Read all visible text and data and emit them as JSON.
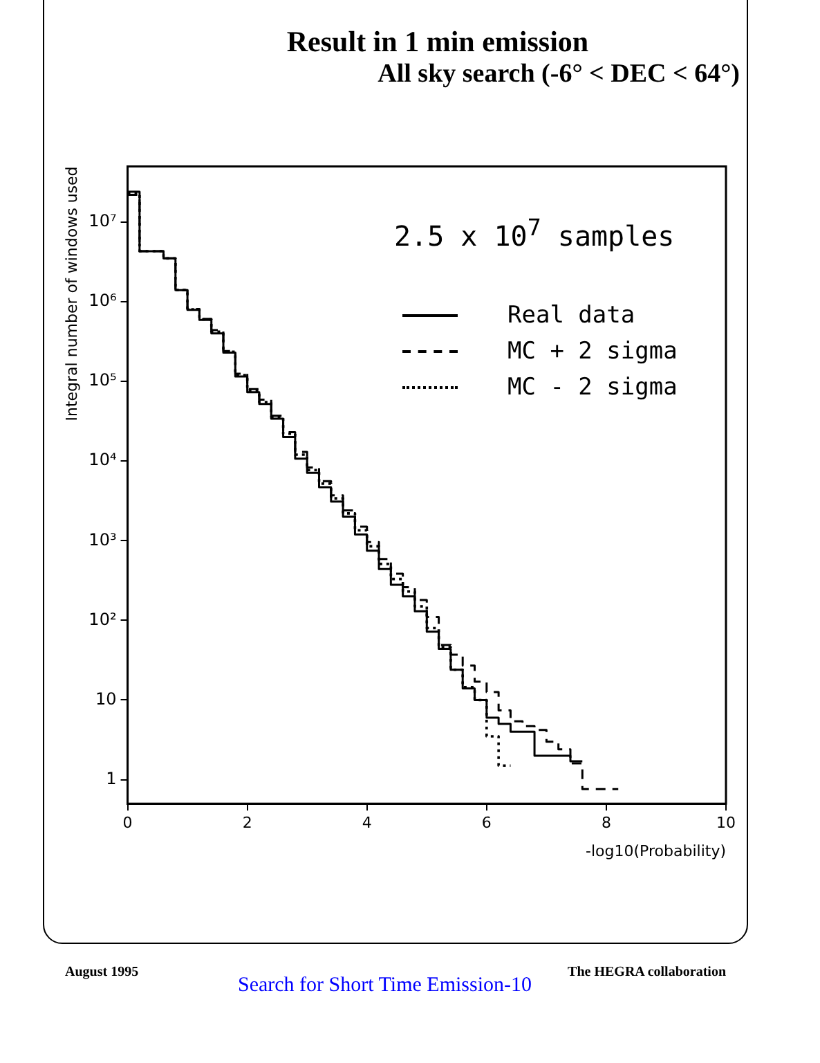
{
  "chart_data": {
    "type": "step",
    "title": "Result in 1 min emission",
    "subtitle": "All sky search (-6° < DEC < 64°)",
    "xlabel": "-log10(Probability)",
    "ylabel": "Integral number of windows used",
    "annotations": [
      "2.5 x 10$^{7}$ samples",
      "August 1995",
      "The HEGRA collaboration",
      "Search for Short Time Emission-10"
    ],
    "series": [
      {
        "name": "Real data",
        "color": "#000000",
        "line_style": "solid",
        "x": [
          0,
          0.2,
          0.4,
          0.6,
          0.8,
          1.0,
          1.2,
          1.4,
          1.6,
          1.8,
          2.0,
          2.2,
          2.4,
          2.6,
          2.8,
          3.0,
          3.2,
          3.4,
          3.6,
          3.8,
          4.0,
          4.2,
          4.4,
          4.6,
          4.8,
          5.0,
          5.2,
          5.4,
          5.6,
          5.8,
          6.0,
          6.2,
          6.4,
          6.6,
          6.8,
          7.0,
          7.2,
          7.4,
          7.6
        ],
        "values": [
          24000000,
          4300000,
          4300000,
          3500000,
          1400000,
          790000,
          590000,
          400000,
          230000,
          115000,
          73000,
          52000,
          34000,
          20000,
          10700,
          7100,
          4700,
          3100,
          2000,
          1200,
          750,
          440,
          280,
          200,
          130,
          72,
          44,
          24,
          14,
          10,
          6,
          5,
          4,
          4,
          2,
          2,
          2,
          1.7,
          1.7
        ]
      },
      {
        "name": "MC + 2 sigma",
        "color": "#000000",
        "line_style": "dashed",
        "x": [
          0,
          0.2,
          0.4,
          0.6,
          0.8,
          1.0,
          1.2,
          1.4,
          1.6,
          1.8,
          2.0,
          2.2,
          2.4,
          2.6,
          2.8,
          3.0,
          3.2,
          3.4,
          3.6,
          3.8,
          4.0,
          4.2,
          4.4,
          4.6,
          4.8,
          5.0,
          5.2,
          5.4,
          5.6,
          5.8,
          6.0,
          6.2,
          6.4,
          6.6,
          6.8,
          7.0,
          7.2,
          7.4,
          7.6,
          7.8,
          8.0,
          8.2
        ],
        "values": [
          22000000,
          4300000,
          4300000,
          3500000,
          1400000,
          810000,
          610000,
          440000,
          240000,
          125000,
          80000,
          59000,
          37000,
          23000,
          13000,
          8300,
          5600,
          3700,
          2400,
          1500,
          960,
          590,
          385,
          260,
          180,
          110,
          49,
          37,
          27,
          17,
          12.6,
          7.4,
          5.4,
          4.7,
          4.2,
          3.0,
          2.4,
          1.6,
          0.76,
          0.76,
          0.76,
          0.76
        ]
      },
      {
        "name": "MC - 2 sigma",
        "color": "#000000",
        "line_style": "dotted",
        "x": [
          0,
          0.2,
          0.4,
          0.6,
          0.8,
          1.0,
          1.2,
          1.4,
          1.6,
          1.8,
          2.0,
          2.2,
          2.4,
          2.6,
          2.8,
          3.0,
          3.2,
          3.4,
          3.6,
          3.8,
          4.0,
          4.2,
          4.4,
          4.6,
          4.8,
          5.0,
          5.2,
          5.4,
          5.6,
          5.8,
          6.0,
          6.2,
          6.4
        ],
        "values": [
          23000000,
          4300000,
          4300000,
          3500000,
          1400000,
          800000,
          600000,
          420000,
          235000,
          120000,
          77000,
          55000,
          36000,
          22000,
          12000,
          7700,
          5200,
          3400,
          2200,
          1350,
          850,
          510,
          330,
          230,
          150,
          80,
          46,
          24,
          14.5,
          10,
          3.5,
          1.5,
          1.5
        ]
      }
    ],
    "xlim": [
      0,
      10
    ],
    "xticks": [
      0,
      2,
      4,
      6,
      8,
      10
    ],
    "ylim": [
      0.5,
      50000000
    ],
    "yticks": [
      1,
      10,
      {
        "value": 100,
        "label": "10²"
      },
      {
        "value": 1000,
        "label": "10³"
      },
      {
        "value": 10000,
        "label": "10⁴"
      },
      {
        "value": 100000,
        "label": "10⁵"
      },
      {
        "value": 1000000,
        "label": "10⁶"
      },
      {
        "value": 10000000,
        "label": "10⁷"
      }
    ],
    "log": "y",
    "legend": "top right"
  }
}
